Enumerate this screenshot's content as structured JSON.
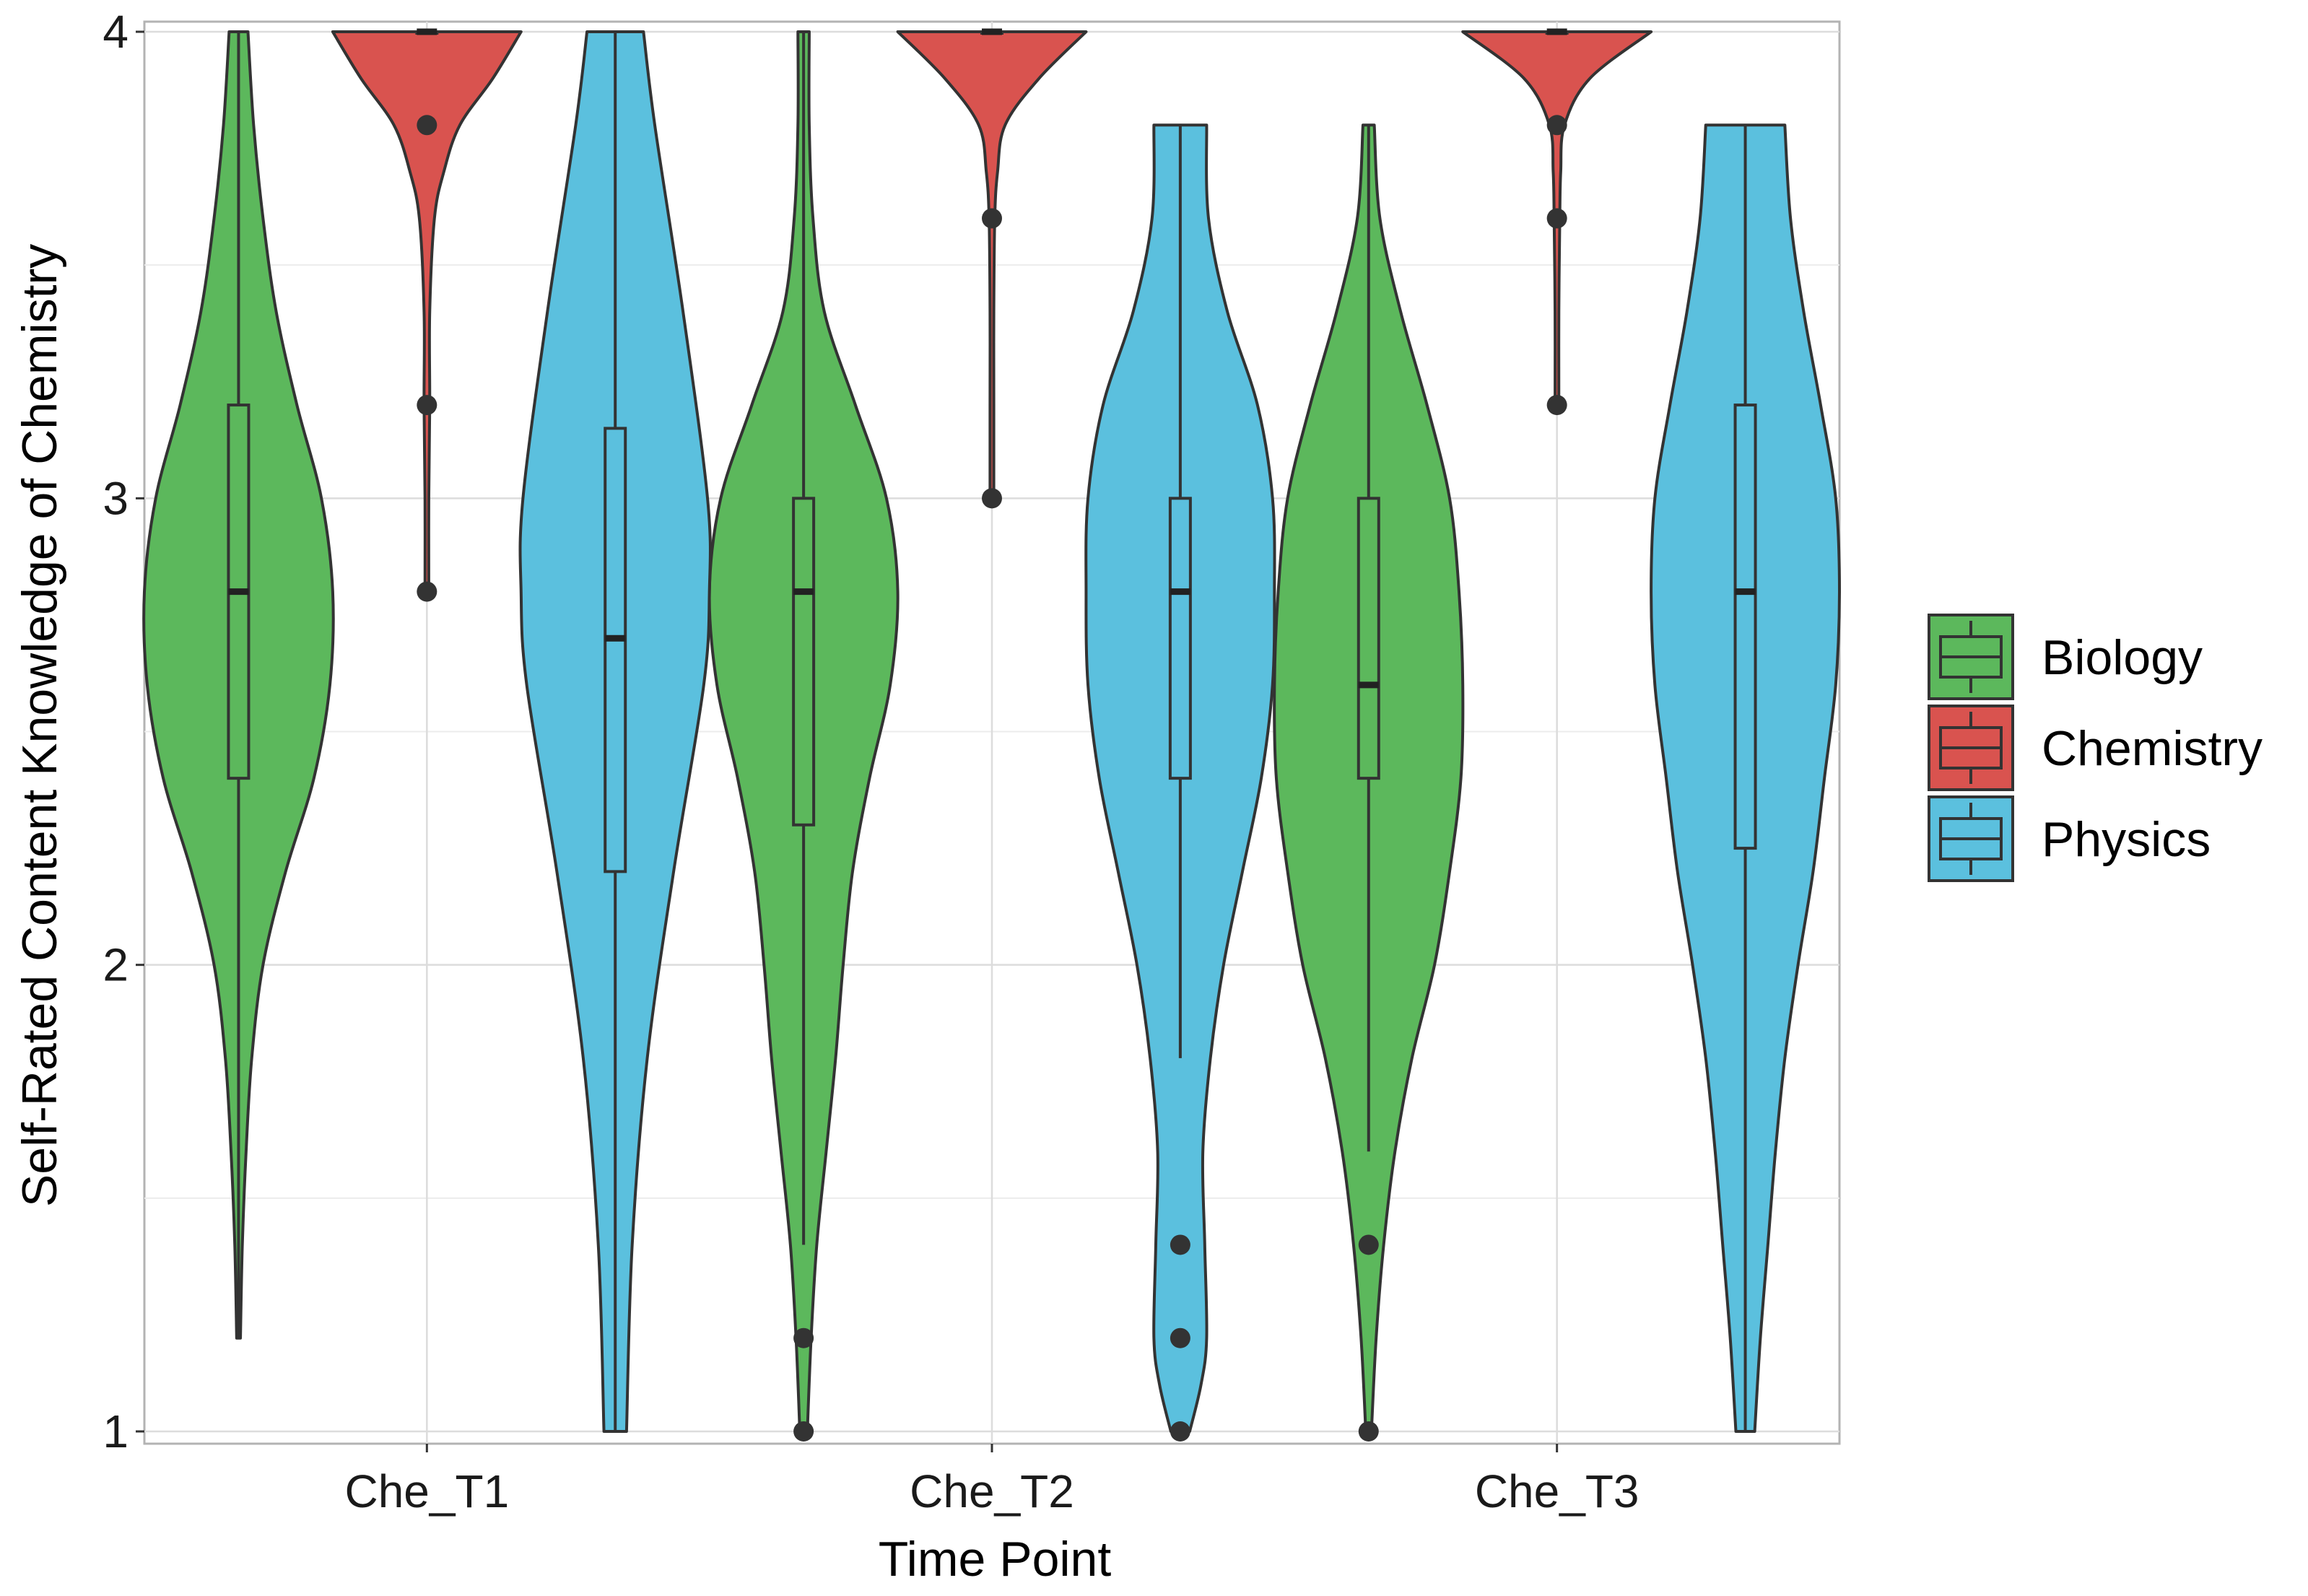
{
  "chart_data": {
    "type": "violin",
    "title": "",
    "xlabel": "Time Point",
    "ylabel": "Self-Rated Content Knowledge of Chemistry",
    "ylim": [
      1,
      4
    ],
    "yticks": [
      "1",
      "2",
      "3",
      "4"
    ],
    "categories": [
      "Che_T1",
      "Che_T2",
      "Che_T3"
    ],
    "grid": true,
    "legend_position": "right",
    "series": [
      {
        "name": "Biology",
        "color": "#5cb85c",
        "groups": [
          {
            "category": "Che_T1",
            "min": 1.2,
            "max": 4.0,
            "q1": 2.4,
            "median": 2.8,
            "q3": 3.2,
            "whisker_low": 1.2,
            "whisker_high": 4.0,
            "outliers": [],
            "density": [
              [
                1.2,
                0.02
              ],
              [
                1.4,
                0.04
              ],
              [
                1.6,
                0.08
              ],
              [
                1.8,
                0.14
              ],
              [
                2.0,
                0.26
              ],
              [
                2.2,
                0.5
              ],
              [
                2.4,
                0.8
              ],
              [
                2.6,
                0.97
              ],
              [
                2.8,
                1.0
              ],
              [
                3.0,
                0.88
              ],
              [
                3.2,
                0.62
              ],
              [
                3.4,
                0.4
              ],
              [
                3.6,
                0.26
              ],
              [
                3.8,
                0.16
              ],
              [
                4.0,
                0.1
              ]
            ]
          },
          {
            "category": "Che_T2",
            "min": 1.0,
            "max": 4.0,
            "q1": 2.3,
            "median": 2.8,
            "q3": 3.0,
            "whisker_low": 1.4,
            "whisker_high": 4.0,
            "outliers": [
              1.2,
              1.0
            ],
            "density": [
              [
                1.0,
                0.04
              ],
              [
                1.2,
                0.08
              ],
              [
                1.4,
                0.14
              ],
              [
                1.6,
                0.24
              ],
              [
                1.8,
                0.34
              ],
              [
                2.0,
                0.42
              ],
              [
                2.2,
                0.52
              ],
              [
                2.4,
                0.7
              ],
              [
                2.6,
                0.92
              ],
              [
                2.8,
                1.0
              ],
              [
                3.0,
                0.88
              ],
              [
                3.2,
                0.55
              ],
              [
                3.4,
                0.22
              ],
              [
                3.6,
                0.1
              ],
              [
                3.8,
                0.06
              ],
              [
                4.0,
                0.06
              ]
            ]
          },
          {
            "category": "Che_T3",
            "min": 1.0,
            "max": 3.8,
            "q1": 2.4,
            "median": 2.6,
            "q3": 3.0,
            "whisker_low": 1.6,
            "whisker_high": 3.8,
            "outliers": [
              1.4,
              1.0
            ],
            "density": [
              [
                1.0,
                0.03
              ],
              [
                1.2,
                0.08
              ],
              [
                1.4,
                0.16
              ],
              [
                1.6,
                0.28
              ],
              [
                1.8,
                0.46
              ],
              [
                2.0,
                0.7
              ],
              [
                2.2,
                0.86
              ],
              [
                2.4,
                0.98
              ],
              [
                2.6,
                1.0
              ],
              [
                2.8,
                0.96
              ],
              [
                3.0,
                0.86
              ],
              [
                3.2,
                0.62
              ],
              [
                3.4,
                0.34
              ],
              [
                3.6,
                0.12
              ],
              [
                3.8,
                0.06
              ]
            ]
          }
        ]
      },
      {
        "name": "Chemistry",
        "color": "#d9534f",
        "groups": [
          {
            "category": "Che_T1",
            "min": 2.8,
            "max": 4.0,
            "q1": 4.0,
            "median": 4.0,
            "q3": 4.0,
            "whisker_low": 4.0,
            "whisker_high": 4.0,
            "outliers": [
              3.8,
              3.2,
              2.8
            ],
            "density": [
              [
                2.8,
                0.02
              ],
              [
                3.0,
                0.02
              ],
              [
                3.2,
                0.03
              ],
              [
                3.4,
                0.03
              ],
              [
                3.6,
                0.08
              ],
              [
                3.7,
                0.18
              ],
              [
                3.8,
                0.35
              ],
              [
                3.9,
                0.7
              ],
              [
                4.0,
                1.0
              ]
            ]
          },
          {
            "category": "Che_T2",
            "min": 3.0,
            "max": 4.0,
            "q1": 4.0,
            "median": 4.0,
            "q3": 4.0,
            "whisker_low": 4.0,
            "whisker_high": 4.0,
            "outliers": [
              3.6,
              3.0
            ],
            "density": [
              [
                3.0,
                0.02
              ],
              [
                3.2,
                0.02
              ],
              [
                3.4,
                0.02
              ],
              [
                3.6,
                0.03
              ],
              [
                3.7,
                0.06
              ],
              [
                3.8,
                0.14
              ],
              [
                3.9,
                0.5
              ],
              [
                4.0,
                1.0
              ]
            ]
          },
          {
            "category": "Che_T3",
            "min": 3.2,
            "max": 4.0,
            "q1": 4.0,
            "median": 4.0,
            "q3": 4.0,
            "whisker_low": 4.0,
            "whisker_high": 4.0,
            "outliers": [
              3.8,
              3.6,
              3.2
            ],
            "density": [
              [
                3.2,
                0.02
              ],
              [
                3.4,
                0.02
              ],
              [
                3.6,
                0.03
              ],
              [
                3.7,
                0.04
              ],
              [
                3.8,
                0.08
              ],
              [
                3.9,
                0.35
              ],
              [
                4.0,
                1.0
              ]
            ]
          }
        ]
      },
      {
        "name": "Physics",
        "color": "#5bc0de",
        "groups": [
          {
            "category": "Che_T1",
            "min": 1.0,
            "max": 4.0,
            "q1": 2.2,
            "median": 2.7,
            "q3": 3.15,
            "whisker_low": 1.0,
            "whisker_high": 4.0,
            "outliers": [],
            "density": [
              [
                1.0,
                0.12
              ],
              [
                1.4,
                0.18
              ],
              [
                1.8,
                0.34
              ],
              [
                2.2,
                0.62
              ],
              [
                2.6,
                0.94
              ],
              [
                2.8,
                1.0
              ],
              [
                3.0,
                0.98
              ],
              [
                3.4,
                0.72
              ],
              [
                3.8,
                0.42
              ],
              [
                4.0,
                0.3
              ]
            ]
          },
          {
            "category": "Che_T2",
            "min": 1.0,
            "max": 3.8,
            "q1": 2.4,
            "median": 2.8,
            "q3": 3.0,
            "whisker_low": 1.8,
            "whisker_high": 3.8,
            "outliers": [
              1.4,
              1.2,
              1.0
            ],
            "density": [
              [
                1.0,
                0.1
              ],
              [
                1.1,
                0.22
              ],
              [
                1.2,
                0.28
              ],
              [
                1.4,
                0.26
              ],
              [
                1.6,
                0.24
              ],
              [
                1.8,
                0.32
              ],
              [
                2.0,
                0.46
              ],
              [
                2.2,
                0.66
              ],
              [
                2.4,
                0.86
              ],
              [
                2.6,
                0.98
              ],
              [
                2.8,
                1.0
              ],
              [
                3.0,
                0.98
              ],
              [
                3.2,
                0.82
              ],
              [
                3.4,
                0.5
              ],
              [
                3.6,
                0.3
              ],
              [
                3.8,
                0.28
              ]
            ]
          },
          {
            "category": "Che_T3",
            "min": 1.0,
            "max": 3.8,
            "q1": 2.25,
            "median": 2.8,
            "q3": 3.2,
            "whisker_low": 1.0,
            "whisker_high": 3.8,
            "outliers": [],
            "density": [
              [
                1.0,
                0.1
              ],
              [
                1.2,
                0.16
              ],
              [
                1.4,
                0.24
              ],
              [
                1.6,
                0.32
              ],
              [
                1.8,
                0.42
              ],
              [
                2.0,
                0.56
              ],
              [
                2.2,
                0.72
              ],
              [
                2.4,
                0.84
              ],
              [
                2.6,
                0.96
              ],
              [
                2.8,
                1.0
              ],
              [
                3.0,
                0.96
              ],
              [
                3.2,
                0.8
              ],
              [
                3.4,
                0.62
              ],
              [
                3.6,
                0.48
              ],
              [
                3.8,
                0.42
              ]
            ]
          }
        ]
      }
    ]
  }
}
